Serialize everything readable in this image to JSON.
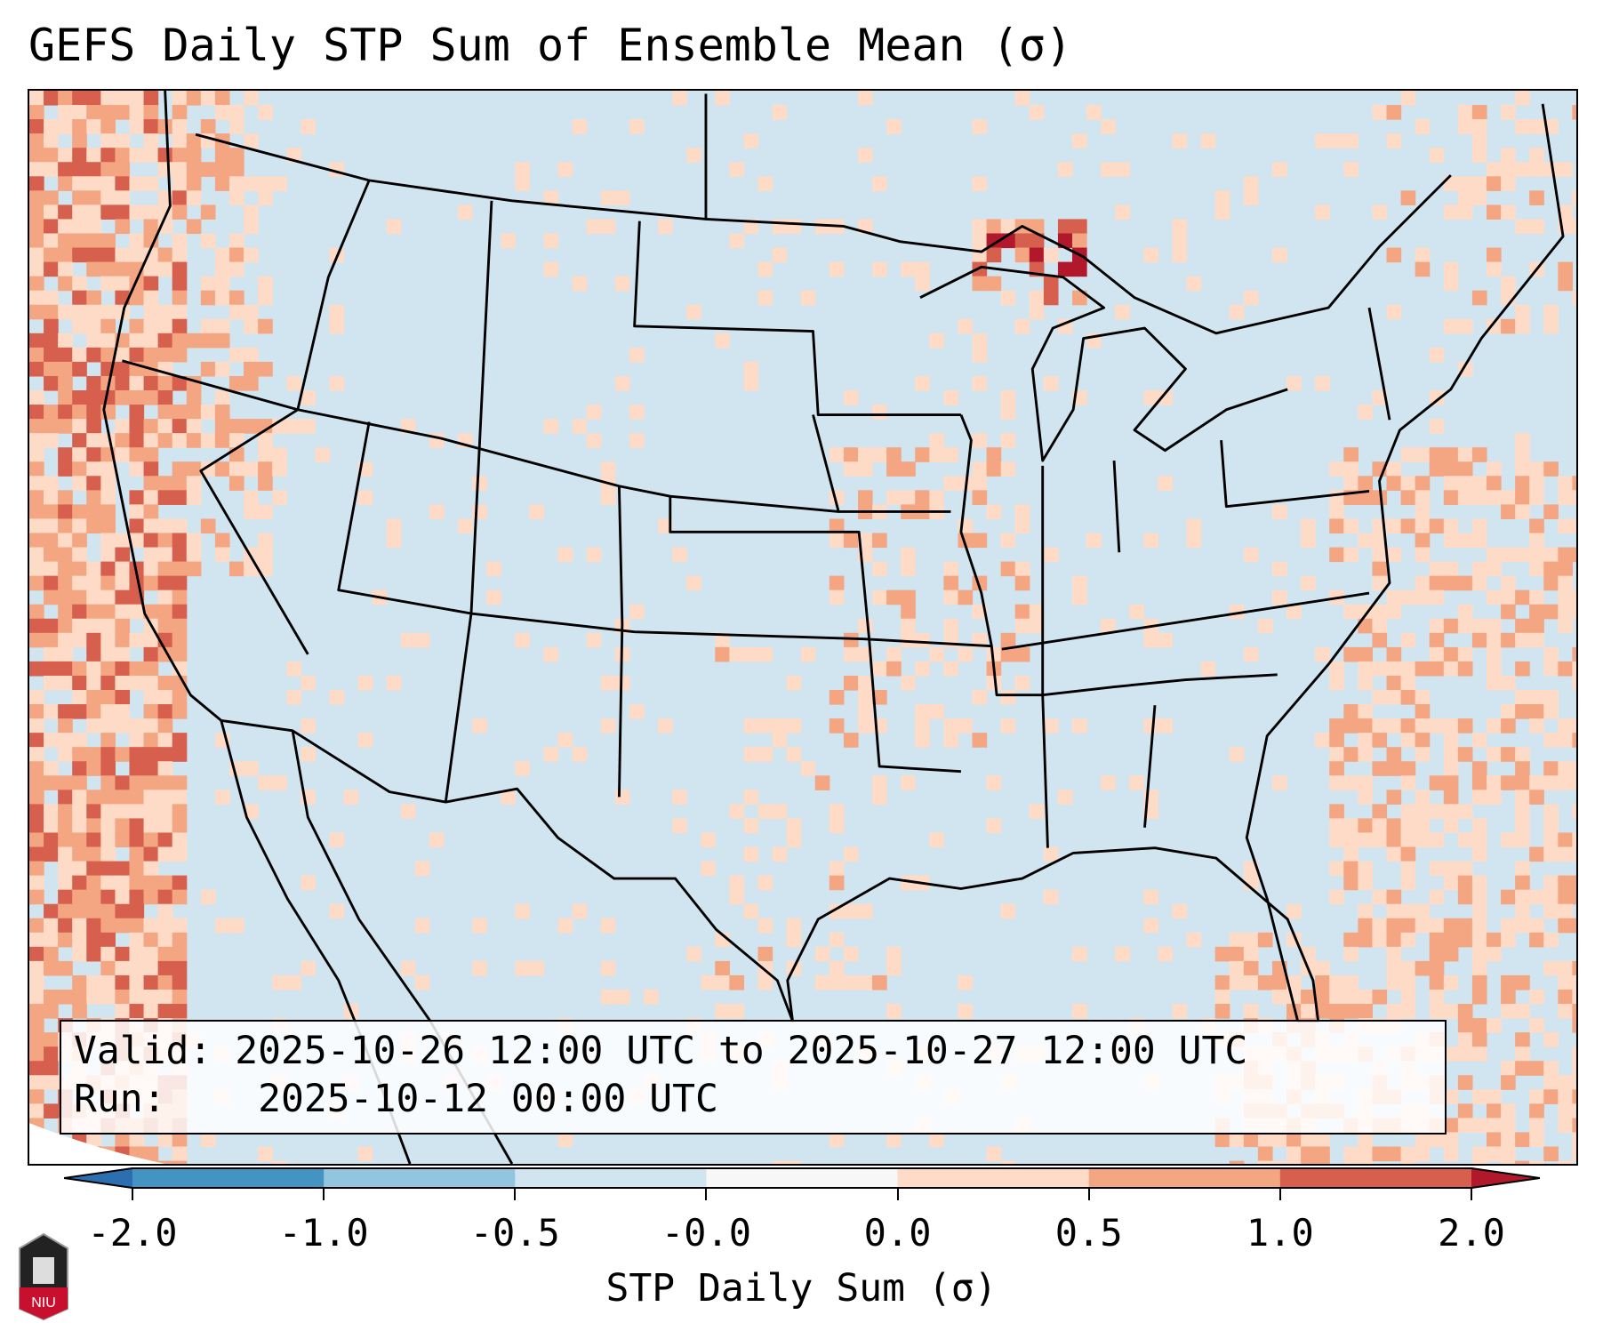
{
  "title": "GEFS Daily STP Sum of Ensemble Mean (σ)",
  "info": {
    "valid_label": "Valid:",
    "valid_value": "2025-10-26 12:00 UTC to 2025-10-27 12:00 UTC",
    "run_label": "Run:",
    "run_value": "2025-10-12 00:00 UTC"
  },
  "colorbar": {
    "label": "STP Daily Sum (σ)",
    "ticks": [
      "-2.0",
      "-1.0",
      "-0.5",
      "-0.0",
      "0.0",
      "0.5",
      "1.0",
      "2.0"
    ],
    "colors": [
      "#2c6fb0",
      "#4393c3",
      "#92c5de",
      "#d1e5f0",
      "#f7f7f7",
      "#fddbc7",
      "#f4a582",
      "#d6604d",
      "#b2182b"
    ]
  },
  "map": {
    "background_color": "#d1e5f0",
    "outside_color": "#ffffff"
  },
  "logo": {
    "text": "NIU"
  }
}
